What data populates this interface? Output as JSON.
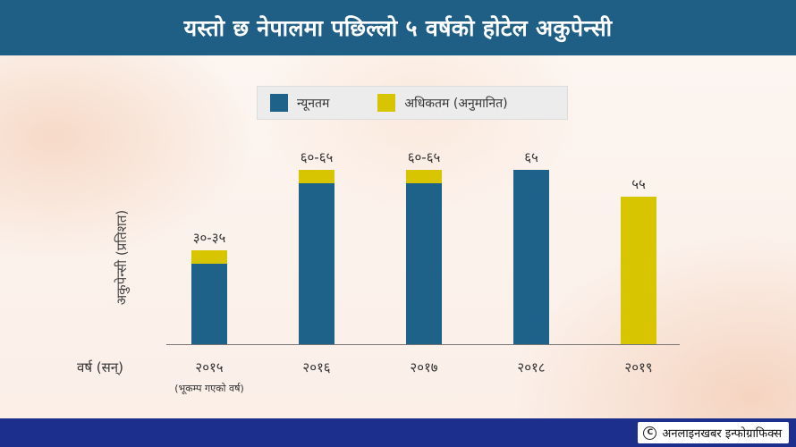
{
  "header": {
    "title": "यस्तो छ नेपालमा पछिल्लो ५ वर्षको होटेल अकुपेन्सी"
  },
  "colors": {
    "header": "#1f5f86",
    "minimum": "#1f6289",
    "maximum": "#d6c500",
    "footer": "#1c2f8c"
  },
  "footer": {
    "credit": "अनलाइनखबर इन्फोग्राफिक्स",
    "copyright_icon": "copyright-icon"
  },
  "chart_data": {
    "type": "bar",
    "stacked": true,
    "title": "यस्तो छ नेपालमा पछिल्लो ५ वर्षको होटेल अकुपेन्सी",
    "ylabel": "अकुपेन्सी (प्रतिशत)",
    "xlabel": "वर्ष (सन्)",
    "categories": [
      "२०१५",
      "२०१६",
      "२०१७",
      "२०१८",
      "२०१९"
    ],
    "category_notes": [
      "(भूकम्प गएको वर्ष)",
      "",
      "",
      "",
      ""
    ],
    "ylim": [
      0,
      70
    ],
    "grid": false,
    "legend_position": "top",
    "series": [
      {
        "name": "न्यूनतम",
        "values": [
          30,
          60,
          60,
          65,
          0
        ]
      },
      {
        "name": "अधिकतम (अनुमानित)",
        "values": [
          5,
          5,
          5,
          0,
          55
        ]
      }
    ],
    "data_labels": [
      "३०-३५",
      "६०-६५",
      "६०-६५",
      "६५",
      "५५"
    ]
  }
}
